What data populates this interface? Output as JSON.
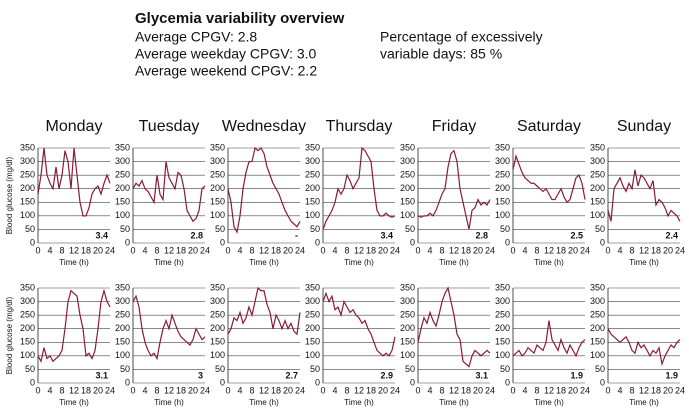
{
  "header": {
    "title": "Glycemia variability overview",
    "left": [
      "Average CPGV: 2.8",
      "Average weekday CPGV: 3.0",
      "Average weekend CPGV: 2.2"
    ],
    "right": [
      "Percentage of excessively",
      "variable days: 85 %"
    ]
  },
  "chart_data": {
    "type": "line",
    "y_label": "Blood glucose (mg/dl)",
    "x_label": "Time (h)",
    "days": [
      "Monday",
      "Tuesday",
      "Wednesday",
      "Thursday",
      "Friday",
      "Saturday",
      "Sunday"
    ],
    "color": "#8b1a3a",
    "grid": true,
    "ylim": [
      0,
      350
    ],
    "yticks": [
      0,
      50,
      100,
      150,
      200,
      250,
      300,
      350
    ],
    "xlim": [
      0,
      24
    ],
    "xtick_labels": [
      "0",
      "4",
      "8",
      "12",
      "18",
      "20",
      "24"
    ],
    "x": [
      0,
      1,
      2,
      3,
      4,
      5,
      6,
      7,
      8,
      9,
      10,
      11,
      12,
      13,
      14,
      15,
      16,
      17,
      18,
      19,
      20,
      21,
      22,
      23,
      24
    ],
    "panels": [
      {
        "cpgv": "3.4",
        "values": [
          180,
          250,
          350,
          250,
          220,
          200,
          280,
          200,
          250,
          340,
          300,
          200,
          350,
          250,
          150,
          100,
          100,
          130,
          180,
          200,
          210,
          180,
          220,
          250,
          220
        ]
      },
      {
        "cpgv": "2.8",
        "values": [
          200,
          220,
          210,
          230,
          200,
          190,
          170,
          150,
          250,
          180,
          160,
          300,
          240,
          220,
          200,
          260,
          250,
          200,
          120,
          100,
          80,
          90,
          120,
          200,
          210
        ]
      },
      {
        "cpgv": "-",
        "values": [
          200,
          150,
          60,
          40,
          100,
          200,
          260,
          300,
          300,
          350,
          340,
          350,
          330,
          280,
          250,
          220,
          200,
          180,
          150,
          120,
          100,
          80,
          70,
          60,
          80
        ]
      },
      {
        "cpgv": "3.4",
        "values": [
          50,
          80,
          100,
          120,
          150,
          200,
          180,
          200,
          250,
          230,
          200,
          220,
          240,
          350,
          340,
          320,
          300,
          200,
          120,
          100,
          100,
          110,
          100,
          95,
          100
        ]
      },
      {
        "cpgv": "2.8",
        "values": [
          100,
          95,
          100,
          100,
          110,
          100,
          120,
          150,
          180,
          200,
          280,
          330,
          340,
          300,
          200,
          150,
          100,
          50,
          120,
          130,
          160,
          140,
          150,
          140,
          160
        ]
      },
      {
        "cpgv": "2.5",
        "values": [
          270,
          320,
          290,
          260,
          240,
          230,
          220,
          220,
          210,
          200,
          190,
          200,
          180,
          160,
          160,
          180,
          200,
          170,
          150,
          160,
          200,
          240,
          250,
          220,
          160
        ]
      },
      {
        "cpgv": "2.4",
        "values": [
          120,
          80,
          200,
          220,
          240,
          210,
          190,
          220,
          200,
          270,
          210,
          250,
          240,
          220,
          200,
          230,
          140,
          160,
          150,
          130,
          100,
          120,
          110,
          100,
          80
        ]
      },
      {
        "cpgv": "3.1",
        "values": [
          100,
          80,
          130,
          90,
          100,
          80,
          90,
          100,
          120,
          200,
          300,
          340,
          330,
          320,
          250,
          200,
          100,
          110,
          90,
          120,
          200,
          300,
          340,
          300,
          280
        ]
      },
      {
        "cpgv": "3",
        "values": [
          300,
          320,
          280,
          200,
          150,
          120,
          100,
          110,
          90,
          150,
          200,
          230,
          200,
          250,
          220,
          190,
          170,
          160,
          150,
          140,
          160,
          200,
          180,
          160,
          170
        ]
      },
      {
        "cpgv": "2.7",
        "values": [
          180,
          200,
          240,
          230,
          260,
          220,
          240,
          280,
          250,
          300,
          350,
          340,
          340,
          290,
          260,
          200,
          250,
          230,
          200,
          230,
          200,
          220,
          190,
          180,
          260
        ]
      },
      {
        "cpgv": "2.9",
        "values": [
          300,
          330,
          300,
          320,
          270,
          280,
          250,
          300,
          280,
          260,
          270,
          250,
          240,
          220,
          230,
          200,
          180,
          150,
          120,
          110,
          100,
          110,
          100,
          120,
          170
        ]
      },
      {
        "cpgv": "3.1",
        "values": [
          150,
          200,
          240,
          220,
          260,
          230,
          210,
          250,
          300,
          330,
          350,
          300,
          250,
          180,
          160,
          80,
          70,
          60,
          100,
          120,
          110,
          100,
          110,
          120,
          110
        ]
      },
      {
        "cpgv": "1.9",
        "values": [
          100,
          110,
          120,
          100,
          110,
          130,
          120,
          110,
          140,
          130,
          120,
          150,
          230,
          160,
          140,
          120,
          160,
          130,
          110,
          140,
          120,
          100,
          130,
          150,
          160
        ]
      },
      {
        "cpgv": "1.9",
        "values": [
          200,
          180,
          170,
          160,
          150,
          160,
          170,
          150,
          120,
          110,
          150,
          130,
          140,
          120,
          100,
          120,
          110,
          130,
          70,
          100,
          120,
          140,
          130,
          150,
          160
        ]
      }
    ]
  }
}
